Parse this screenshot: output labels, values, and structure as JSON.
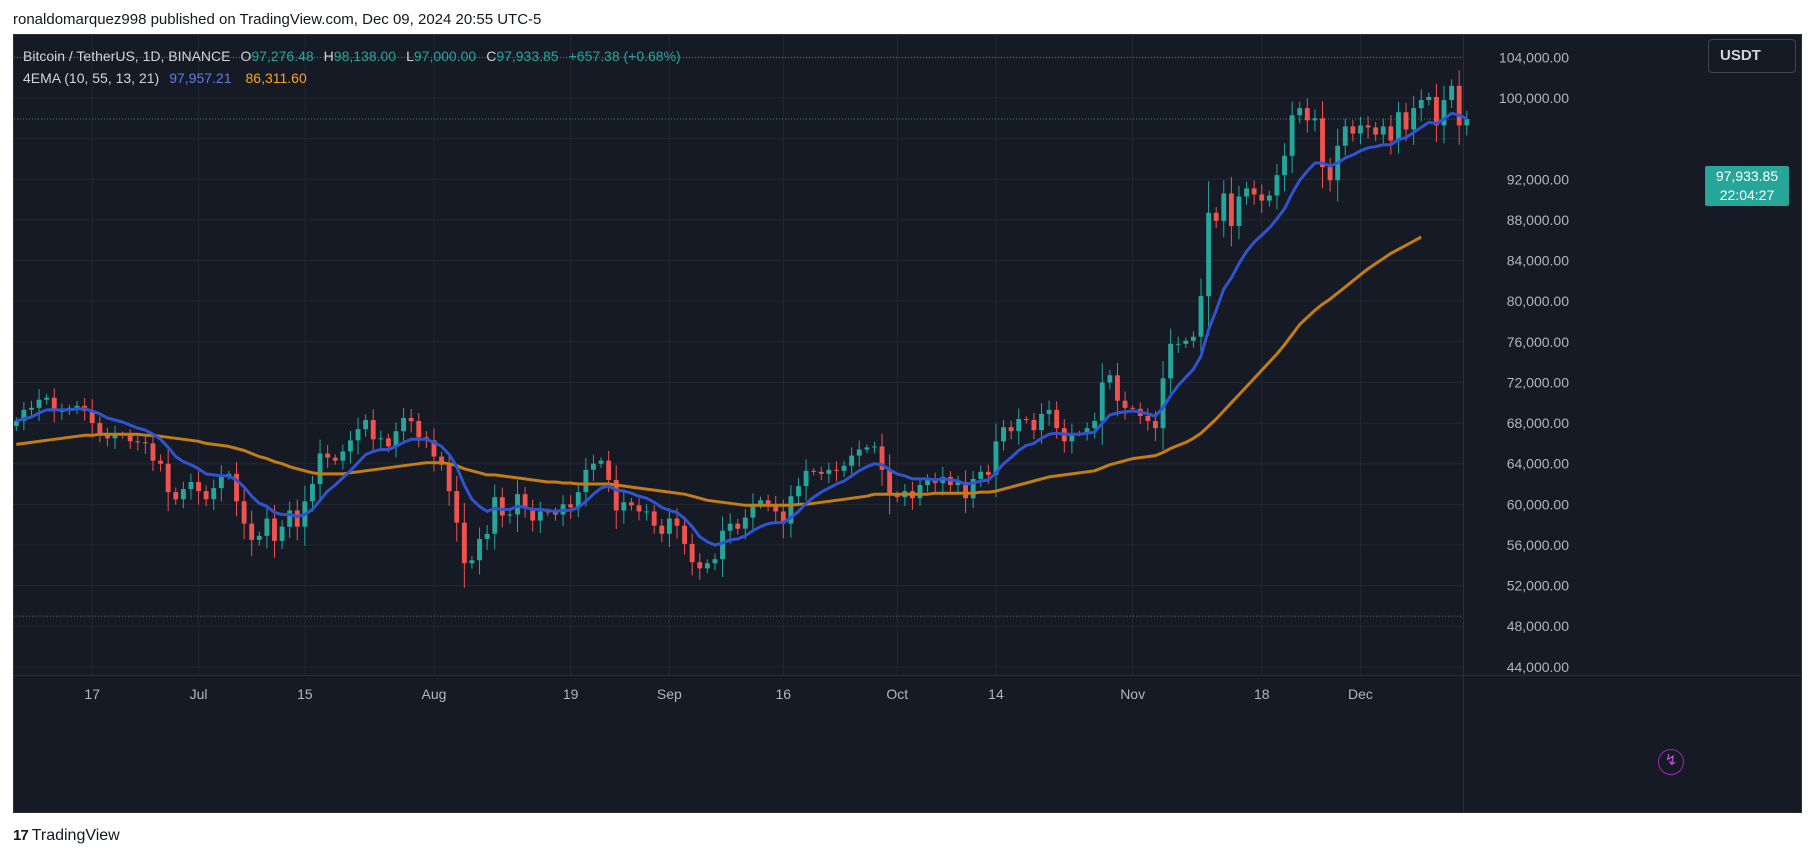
{
  "header": {
    "publisher_line": "ronaldomarquez998 published on TradingView.com, Dec 09, 2024 20:55 UTC-5"
  },
  "legend": {
    "symbol": "Bitcoin / TetherUS, 1D, BINANCE",
    "open_label": "O",
    "open": "97,276.48",
    "high_label": "H",
    "high": "98,138.00",
    "low_label": "L",
    "low": "97,000.00",
    "close_label": "C",
    "close": "97,933.85",
    "change": "+657.38 (+0.68%)",
    "indicator": "4EMA (10, 55, 13, 21)",
    "ema_fast": "97,957.21",
    "ema_slow": "86,311.60"
  },
  "price_scale": {
    "currency": "USDT",
    "last_price": "97,933.85",
    "countdown": "22:04:27"
  },
  "footer": {
    "logo_mark": "17",
    "brand": "TradingView"
  },
  "colors": {
    "background": "#161a25",
    "grid": "#232734",
    "up": "#26a69a",
    "down": "#ef5350",
    "ema_fast": "#3054d0",
    "ema_slow": "#c27d14",
    "axis_text": "#b2b5be"
  },
  "icons": {
    "alert": "lightning-bolt-icon"
  },
  "chart_data": {
    "type": "candlestick",
    "title": "Bitcoin / TetherUS, 1D, BINANCE",
    "y_axis": {
      "ticks": [
        44000,
        48000,
        52000,
        56000,
        60000,
        64000,
        68000,
        72000,
        76000,
        80000,
        84000,
        88000,
        92000,
        96000,
        100000,
        104000
      ],
      "tick_labels": [
        "44,000.00",
        "48,000.00",
        "52,000.00",
        "56,000.00",
        "60,000.00",
        "64,000.00",
        "68,000.00",
        "72,000.00",
        "76,000.00",
        "80,000.00",
        "84,000.00",
        "88,000.00",
        "92,000.00",
        "",
        "100,000.00",
        "104,000.00"
      ],
      "range": [
        43200,
        106200
      ]
    },
    "x_axis": {
      "first_date": "2024-06-07",
      "range_days": [
        -0.3,
        190.5
      ],
      "ticks": [
        {
          "label": "17",
          "day": 10
        },
        {
          "label": "Jul",
          "day": 24
        },
        {
          "label": "15",
          "day": 38
        },
        {
          "label": "Aug",
          "day": 55
        },
        {
          "label": "19",
          "day": 73
        },
        {
          "label": "Sep",
          "day": 86
        },
        {
          "label": "16",
          "day": 101
        },
        {
          "label": "Oct",
          "day": 116
        },
        {
          "label": "14",
          "day": 129
        },
        {
          "label": "Nov",
          "day": 147
        },
        {
          "label": "18",
          "day": 164
        },
        {
          "label": "Dec",
          "day": 177
        }
      ]
    },
    "reference_lines": [
      104000,
      97933.85,
      49000
    ],
    "closes": [
      68200,
      69300,
      69500,
      70300,
      70500,
      69200,
      69200,
      69500,
      69700,
      69200,
      68000,
      66900,
      66500,
      66900,
      66800,
      66200,
      66100,
      66000,
      64300,
      64000,
      61200,
      60500,
      61500,
      62200,
      61300,
      60500,
      61600,
      62800,
      63000,
      60300,
      58100,
      56500,
      56900,
      58600,
      56400,
      57800,
      59400,
      57800,
      60300,
      62000,
      65000,
      64600,
      64300,
      65200,
      66300,
      67400,
      68300,
      66400,
      66500,
      65700,
      67200,
      68500,
      68200,
      66600,
      66300,
      64700,
      63900,
      61300,
      58200,
      54200,
      54500,
      56600,
      57100,
      60700,
      58900,
      59000,
      61000,
      59600,
      58400,
      59300,
      59200,
      59000,
      60000,
      59700,
      61200,
      63400,
      64000,
      64300,
      62400,
      59400,
      60200,
      59900,
      59300,
      59300,
      57900,
      57100,
      58600,
      57900,
      56100,
      54300,
      53700,
      54200,
      54600,
      57400,
      58100,
      57600,
      58700,
      60000,
      60400,
      60000,
      59300,
      58100,
      60800,
      61800,
      63300,
      63200,
      63000,
      63400,
      63300,
      63800,
      64800,
      65400,
      65600,
      65700,
      63400,
      60900,
      60700,
      61300,
      60600,
      61900,
      62400,
      62100,
      62700,
      61900,
      62200,
      60600,
      62500,
      63200,
      62900,
      66200,
      67600,
      67200,
      68400,
      68300,
      67300,
      68900,
      69300,
      67500,
      66200,
      67000,
      67000,
      67500,
      68200,
      72000,
      72700,
      70200,
      69500,
      69400,
      68700,
      68200,
      67500,
      72400,
      75800,
      75800,
      76100,
      76500,
      80500,
      88700,
      87900,
      90600,
      87400,
      90300,
      91100,
      90500,
      89900,
      90400,
      92400,
      94300,
      98300,
      99000,
      97800,
      98000,
      93200,
      91900,
      95300,
      97200,
      96500,
      97300,
      97100,
      96400,
      97200,
      95800,
      98600,
      96900,
      99000,
      99800,
      100100,
      97300,
      99800,
      101200,
      97300,
      97933.85
    ],
    "ema_fast_10": [
      68200,
      68400,
      68600,
      69000,
      69300,
      69300,
      69300,
      69300,
      69400,
      69400,
      69200,
      68900,
      68500,
      68300,
      68100,
      67800,
      67500,
      67300,
      66900,
      66400,
      65600,
      64700,
      64200,
      63900,
      63500,
      63000,
      62900,
      62800,
      62800,
      62400,
      61700,
      60800,
      60100,
      59800,
      59200,
      59000,
      59000,
      58800,
      59000,
      59500,
      60400,
      61300,
      61900,
      62600,
      63300,
      64100,
      64900,
      65200,
      65400,
      65400,
      65700,
      66100,
      66400,
      66400,
      66400,
      66100,
      65700,
      64900,
      63700,
      61900,
      60500,
      59800,
      59300,
      59600,
      59500,
      59500,
      59800,
      59700,
      59500,
      59500,
      59400,
      59300,
      59400,
      59400,
      59700,
      60300,
      61000,
      61600,
      61800,
      61400,
      61300,
      61100,
      60800,
      60600,
      60200,
      59700,
      59400,
      59200,
      58600,
      57800,
      56800,
      56300,
      56000,
      56200,
      56500,
      56600,
      56900,
      57400,
      57800,
      58100,
      58200,
      58200,
      58700,
      59300,
      60100,
      60700,
      61200,
      61600,
      62000,
      62300,
      62800,
      63300,
      63700,
      64000,
      63900,
      63400,
      63000,
      62800,
      62500,
      62500,
      62500,
      62400,
      62500,
      62400,
      62300,
      62000,
      62100,
      62300,
      62400,
      63100,
      64000,
      64600,
      65300,
      65800,
      66000,
      66500,
      66900,
      67000,
      66900,
      66900,
      66900,
      67000,
      67100,
      68000,
      68800,
      69000,
      69100,
      69200,
      69100,
      68900,
      68700,
      69500,
      70700,
      71700,
      72500,
      73300,
      74600,
      77200,
      79100,
      81200,
      82300,
      83700,
      84900,
      85800,
      86500,
      87200,
      88100,
      89100,
      90600,
      91900,
      92800,
      93600,
      93600,
      93300,
      93600,
      94100,
      94400,
      94800,
      95100,
      95200,
      95400,
      95400,
      95900,
      96100,
      96600,
      97100,
      97600,
      97500,
      97900,
      98500,
      98300,
      97957.21
    ],
    "ema_slow_55": [
      65900,
      66000,
      66100,
      66200,
      66300,
      66400,
      66500,
      66600,
      66700,
      66800,
      66800,
      66900,
      66900,
      66900,
      66900,
      66900,
      66900,
      66800,
      66800,
      66700,
      66600,
      66500,
      66400,
      66300,
      66200,
      66000,
      65900,
      65800,
      65700,
      65500,
      65300,
      65000,
      64700,
      64500,
      64200,
      64000,
      63700,
      63500,
      63300,
      63100,
      63000,
      63000,
      63000,
      63000,
      63100,
      63200,
      63300,
      63400,
      63500,
      63600,
      63700,
      63800,
      63900,
      64000,
      64100,
      64100,
      64100,
      64000,
      63800,
      63500,
      63300,
      63100,
      62900,
      62900,
      62800,
      62700,
      62600,
      62500,
      62400,
      62300,
      62200,
      62200,
      62100,
      62100,
      62000,
      62000,
      62000,
      62000,
      62000,
      61900,
      61800,
      61700,
      61600,
      61500,
      61400,
      61300,
      61200,
      61100,
      61000,
      60800,
      60600,
      60400,
      60300,
      60200,
      60100,
      60000,
      59900,
      59900,
      59900,
      59900,
      59900,
      59900,
      59900,
      60000,
      60000,
      60100,
      60200,
      60300,
      60400,
      60500,
      60600,
      60700,
      60800,
      61000,
      61000,
      61000,
      61000,
      61000,
      61000,
      61000,
      61000,
      61100,
      61100,
      61100,
      61100,
      61100,
      61100,
      61200,
      61200,
      61300,
      61500,
      61700,
      61900,
      62100,
      62300,
      62500,
      62700,
      62800,
      62900,
      63000,
      63100,
      63200,
      63300,
      63600,
      63900,
      64100,
      64300,
      64500,
      64600,
      64700,
      64800,
      65100,
      65500,
      65800,
      66100,
      66500,
      67000,
      67700,
      68400,
      69200,
      70000,
      70800,
      71600,
      72400,
      73200,
      74000,
      74800,
      75700,
      76700,
      77700,
      78400,
      79100,
      79700,
      80200,
      80800,
      81400,
      82000,
      82600,
      83200,
      83700,
      84200,
      84700,
      85100,
      85500,
      85900,
      86311.6
    ]
  }
}
